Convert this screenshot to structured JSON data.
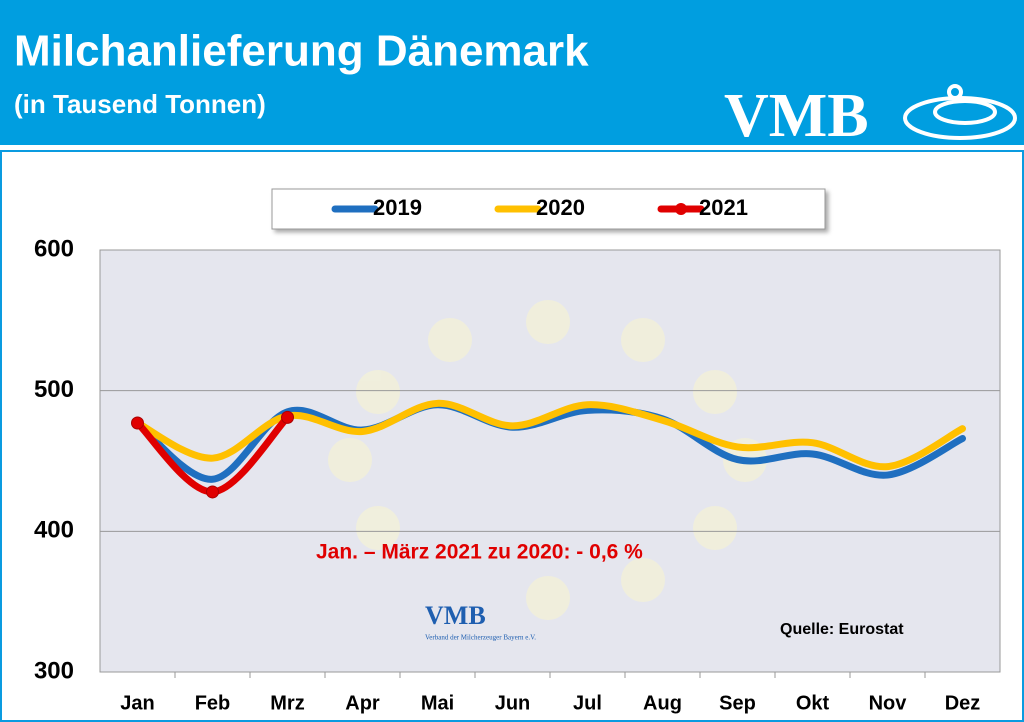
{
  "chart_data": {
    "type": "line",
    "title": "Milchanlieferung Dänemark",
    "subtitle": "(in Tausend Tonnen)",
    "categories": [
      "Jan",
      "Feb",
      "Mrz",
      "Apr",
      "Mai",
      "Jun",
      "Jul",
      "Aug",
      "Sep",
      "Okt",
      "Nov",
      "Dez"
    ],
    "series": [
      {
        "name": "2019",
        "color": "#1f6fc0",
        "values": [
          477,
          437,
          485,
          472,
          490,
          474,
          486,
          480,
          451,
          455,
          440,
          466
        ]
      },
      {
        "name": "2020",
        "color": "#ffc000",
        "values": [
          477,
          452,
          482,
          471,
          491,
          475,
          490,
          479,
          460,
          463,
          446,
          473
        ]
      },
      {
        "name": "2021",
        "color": "#e00000",
        "markers": true,
        "values": [
          477,
          428,
          481,
          null,
          null,
          null,
          null,
          null,
          null,
          null,
          null,
          null
        ]
      }
    ],
    "ylim": [
      300,
      600
    ],
    "yticks": [
      300,
      400,
      500,
      600
    ],
    "grid": true,
    "legend": "top",
    "annotations": [
      "Jan. – März 2021 zu 2020:  - 0,6 %",
      "Quelle: Eurostat"
    ]
  },
  "logo": {
    "text": "VMB",
    "small_text": "VMB",
    "small_caption": "Verband der Milcherzeuger Bayern e.V."
  }
}
